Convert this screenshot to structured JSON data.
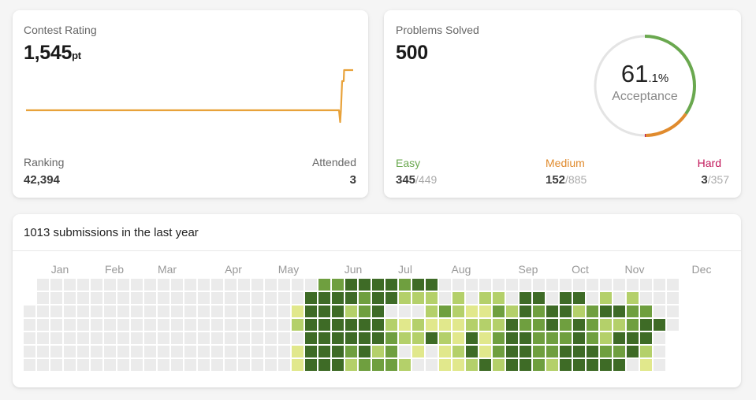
{
  "rating": {
    "label": "Contest Rating",
    "value": "1,545",
    "unit": "pt",
    "ranking_label": "Ranking",
    "ranking_value": "42,394",
    "attended_label": "Attended",
    "attended_value": "3",
    "line_color": "#e8a23a"
  },
  "solved": {
    "label": "Problems Solved",
    "value": "500",
    "acceptance_int": "61",
    "acceptance_dec": ".1%",
    "acceptance_label": "Acceptance",
    "easy": {
      "label": "Easy",
      "solved": "345",
      "total": "/449",
      "color": "#6aa84f"
    },
    "medium": {
      "label": "Medium",
      "solved": "152",
      "total": "/885",
      "color": "#e08b2e"
    },
    "hard": {
      "label": "Hard",
      "solved": "3",
      "total": "/357",
      "color": "#c2185b"
    },
    "ring_fractions": {
      "easy": 0.69,
      "medium": 0.304,
      "hard": 0.006
    }
  },
  "submissions": {
    "title": "1013 submissions in the last year",
    "months": [
      "Jan",
      "Feb",
      "Mar",
      "Apr",
      "May",
      "Jun",
      "Jul",
      "Aug",
      "Sep",
      "Oct",
      "Nov",
      "Dec"
    ],
    "levels": [
      "0000000000000000000000334444344000000000000000000",
      "0000000000000000000004444344222020220440440202000",
      "0000000000000000000014442340002321132434423443300",
      "0000000000000000000024444442121112224334343223440",
      "0000000000000000000004444443224214134433343244400",
      "0000000000000000000014443423010124134433444334200",
      "0000000000000000000014442333200112424432444440100"
    ],
    "colors": [
      "#ebebeb",
      "#e1e88c",
      "#b4d06a",
      "#6f9f3f",
      "#3e6b26"
    ]
  }
}
